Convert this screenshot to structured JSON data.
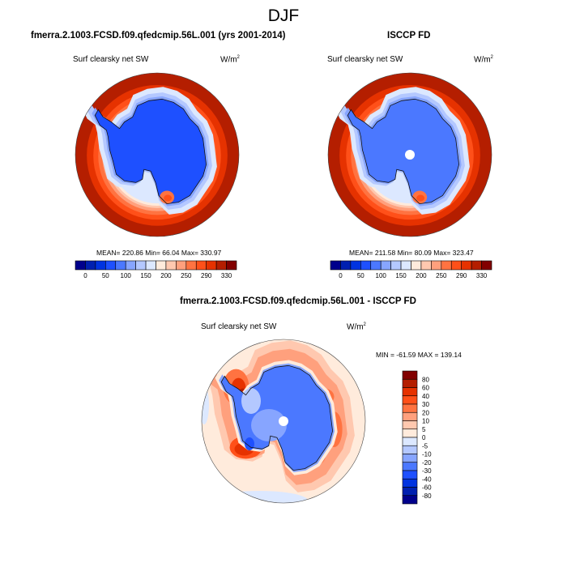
{
  "figure": {
    "title": "DJF"
  },
  "chart_data": [
    {
      "type": "heatmap",
      "projection": "south-polar-stereographic",
      "panel_title": "fmerra.2.1003.FCSD.f09.qfedcmip.56L.001 (yrs 2001-2014)",
      "left_string": "Surf clearsky net SW",
      "right_string_base": "W/m",
      "right_string_sup": "2",
      "stats_text": "MEAN= 220.86  Min=  66.04  Max= 330.97",
      "mean": 220.86,
      "min": 66.04,
      "max": 330.97,
      "colorbar": {
        "orientation": "horizontal",
        "tick_labels": [
          "0",
          "50",
          "100",
          "150",
          "200",
          "250",
          "290",
          "330"
        ],
        "levels": [
          0,
          25,
          50,
          75,
          100,
          125,
          150,
          175,
          200,
          225,
          250,
          270,
          290,
          310,
          330
        ],
        "colors": [
          "#00008c",
          "#0020b0",
          "#0033e0",
          "#1e50ff",
          "#4b78ff",
          "#87a5ff",
          "#b4c8ff",
          "#dce8ff",
          "#ffebdc",
          "#ffc8af",
          "#ffa07d",
          "#ff7341",
          "#ff5019",
          "#e63200",
          "#b41e00",
          "#820000"
        ]
      },
      "field_description": "Ocean ring values ~310-330 at outer edge decreasing toward coast (~175-200); Antarctic continent ~75-100",
      "pole_masked": false
    },
    {
      "type": "heatmap",
      "projection": "south-polar-stereographic",
      "panel_title": "ISCCP FD",
      "left_string": "Surf clearsky net SW",
      "right_string_base": "W/m",
      "right_string_sup": "2",
      "stats_text": "MEAN= 211.58  Min=  80.09  Max= 323.47",
      "mean": 211.58,
      "min": 80.09,
      "max": 323.47,
      "colorbar": {
        "orientation": "horizontal",
        "tick_labels": [
          "0",
          "50",
          "100",
          "150",
          "200",
          "250",
          "290",
          "330"
        ],
        "levels": [
          0,
          25,
          50,
          75,
          100,
          125,
          150,
          175,
          200,
          225,
          250,
          270,
          290,
          310,
          330
        ],
        "colors": [
          "#00008c",
          "#0020b0",
          "#0033e0",
          "#1e50ff",
          "#4b78ff",
          "#87a5ff",
          "#b4c8ff",
          "#dce8ff",
          "#ffebdc",
          "#ffc8af",
          "#ffa07d",
          "#ff7341",
          "#ff5019",
          "#e63200",
          "#b41e00",
          "#820000"
        ]
      },
      "field_description": "Ocean ring ~310-330 at edge decreasing toward coast; continent ~100-125; missing data at pole",
      "pole_masked": true
    },
    {
      "type": "heatmap",
      "projection": "south-polar-stereographic",
      "panel_title": "fmerra.2.1003.FCSD.f09.qfedcmip.56L.001 - ISCCP FD",
      "left_string": "Surf clearsky net SW",
      "right_string_base": "W/m",
      "right_string_sup": "2",
      "stats_text": "MIN = -61.59 MAX = 139.14",
      "min": -61.59,
      "max": 139.14,
      "colorbar": {
        "orientation": "vertical",
        "tick_labels": [
          "80",
          "60",
          "40",
          "30",
          "20",
          "10",
          "5",
          "0",
          "-5",
          "-10",
          "-20",
          "-30",
          "-40",
          "-60",
          "-80"
        ],
        "levels": [
          80,
          60,
          40,
          30,
          20,
          10,
          5,
          0,
          -5,
          -10,
          -20,
          -30,
          -40,
          -60,
          -80
        ],
        "colors_top_to_bottom": [
          "#820000",
          "#b41e00",
          "#e63200",
          "#ff5019",
          "#ff7341",
          "#ffa07d",
          "#ffc8af",
          "#ffebdc",
          "#dce8ff",
          "#b4c8ff",
          "#87a5ff",
          "#4b78ff",
          "#1e50ff",
          "#0033e0",
          "#0020b0",
          "#00008c"
        ]
      },
      "field_description": "Outer ocean near 0 to +5; coastal sea-ice zone +20 to +60 positive bias; continent -10 to -30 negative bias; missing data at pole",
      "pole_masked": true
    }
  ]
}
